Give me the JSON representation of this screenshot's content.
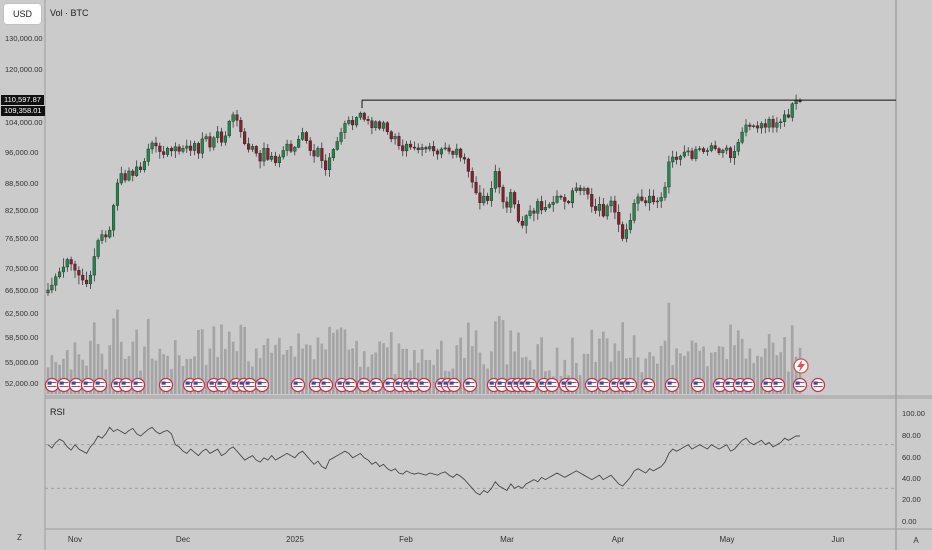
{
  "toolbar": {
    "currency": "USD"
  },
  "legend": {
    "volume": "Vol · BTC",
    "rsi": "RSI"
  },
  "price_axis": {
    "labels": [
      "130,000.00",
      "120,000.00",
      "110,597.87",
      "109,358.01",
      "104,000.00",
      "96,000.00",
      "88,500.00",
      "82,500.00",
      "76,500.00",
      "70,500.00",
      "66,500.00",
      "62,500.00",
      "58,500.00",
      "55,000.00",
      "52,000.00"
    ],
    "current_price": "110,597.87",
    "crosshair_price": "109,358.01"
  },
  "rsi_axis": {
    "labels": [
      "100.00",
      "80.00",
      "60.00",
      "40.00",
      "20.00",
      "0.00"
    ]
  },
  "time_axis": {
    "labels": [
      "Nov",
      "Dec",
      "2025",
      "Feb",
      "Mar",
      "Apr",
      "May",
      "Jun"
    ]
  },
  "buttons": {
    "z": "Z",
    "a": "A"
  },
  "colors": {
    "up": "#1e8a4c",
    "down": "#8a1e2c",
    "volume": "#9e9e9e",
    "rsi": "#4a4a4a",
    "bg": "#cbcbcb",
    "grid": "#b9b9b9"
  },
  "icons": {
    "event": "us-flag-icon",
    "special_event": "lightning-icon"
  },
  "chart_data": {
    "type": "candlestick",
    "title": "",
    "closes": [
      66500,
      67400,
      68900,
      69800,
      70700,
      72200,
      71300,
      70100,
      69200,
      68300,
      67600,
      69200,
      72800,
      76000,
      77200,
      76700,
      78200,
      83500,
      88500,
      90800,
      89200,
      91400,
      90300,
      92400,
      91700,
      93700,
      96800,
      98400,
      97600,
      96100,
      95400,
      97000,
      96300,
      97400,
      96200,
      97000,
      97600,
      96400,
      98300,
      95700,
      99500,
      100100,
      97300,
      99800,
      101400,
      98600,
      100300,
      104200,
      106200,
      104500,
      101400,
      98200,
      96700,
      97500,
      95700,
      93800,
      97000,
      94200,
      95000,
      93400,
      94800,
      96400,
      98100,
      96200,
      97300,
      99400,
      101200,
      99000,
      96400,
      95000,
      97000,
      93900,
      91700,
      94600,
      96700,
      98800,
      101200,
      103600,
      104500,
      103200,
      105400,
      106700,
      104800,
      104400,
      102500,
      104100,
      102300,
      103800,
      101400,
      99500,
      100200,
      97700,
      96300,
      98100,
      97300,
      97100,
      96600,
      97200,
      96800,
      97500,
      96300,
      95500,
      96800,
      97100,
      96200,
      95400,
      96800,
      94700,
      94300,
      91300,
      88700,
      86300,
      84100,
      85600,
      84600,
      87300,
      91300,
      87600,
      84300,
      83100,
      86400,
      83800,
      80100,
      79200,
      81300,
      82300,
      81800,
      84400,
      82500,
      83100,
      83700,
      84200,
      85600,
      85300,
      84400,
      84100,
      86800,
      87400,
      86800,
      87300,
      86000,
      83300,
      82400,
      83800,
      81200,
      83400,
      84500,
      82000,
      79400,
      76400,
      78300,
      80300,
      84000,
      85400,
      84600,
      84100,
      85600,
      84300,
      84500,
      85300,
      87600,
      93600,
      94800,
      94200,
      95000,
      96000,
      96300,
      94400,
      96700,
      96900,
      96100,
      96400,
      97700,
      96900,
      95800,
      96500,
      97100,
      94600,
      96200,
      98600,
      101300,
      103200,
      102800,
      103000,
      102400,
      103600,
      102600,
      104800,
      102600,
      103800,
      104100,
      106200,
      105400,
      109500,
      110500,
      110100
    ],
    "volume_range": [
      0,
      100
    ],
    "rsi": [
      70,
      67,
      72,
      75,
      73,
      68,
      65,
      70,
      66,
      64,
      62,
      68,
      72,
      78,
      76,
      80,
      86,
      82,
      84,
      82,
      80,
      83,
      85,
      80,
      78,
      81,
      84,
      86,
      82,
      80,
      82,
      83,
      80,
      70,
      68,
      64,
      62,
      66,
      63,
      60,
      64,
      66,
      62,
      64,
      66,
      60,
      62,
      66,
      68,
      64,
      60,
      56,
      58,
      60,
      56,
      54,
      58,
      56,
      60,
      56,
      58,
      60,
      62,
      60,
      58,
      62,
      64,
      60,
      56,
      52,
      55,
      50,
      48,
      56,
      58,
      60,
      62,
      64,
      62,
      58,
      60,
      62,
      58,
      56,
      52,
      54,
      50,
      52,
      48,
      46,
      48,
      44,
      43,
      46,
      44,
      43,
      44,
      43,
      42,
      44,
      43,
      42,
      44,
      45,
      42,
      40,
      43,
      41,
      38,
      34,
      30,
      26,
      24,
      28,
      26,
      30,
      36,
      32,
      30,
      28,
      34,
      30,
      32,
      30,
      34,
      36,
      38,
      36,
      40,
      38,
      40,
      42,
      44,
      42,
      40,
      42,
      44,
      46,
      44,
      42,
      40,
      38,
      40,
      42,
      38,
      40,
      42,
      38,
      34,
      32,
      36,
      40,
      46,
      48,
      46,
      44,
      48,
      46,
      48,
      50,
      54,
      62,
      66,
      64,
      66,
      68,
      70,
      66,
      68,
      70,
      68,
      66,
      70,
      68,
      66,
      68,
      70,
      64,
      66,
      70,
      74,
      76,
      72,
      70,
      72,
      74,
      70,
      72,
      68,
      70,
      72,
      76,
      74,
      76,
      78,
      78
    ],
    "rsi_range": [
      0,
      100
    ],
    "rsi_bands": [
      70,
      30
    ],
    "horizontal_line": 110600,
    "x_ticks": [
      "Nov",
      "Dec",
      "2025",
      "Feb",
      "Mar",
      "Apr",
      "May",
      "Jun"
    ],
    "grid": false
  }
}
